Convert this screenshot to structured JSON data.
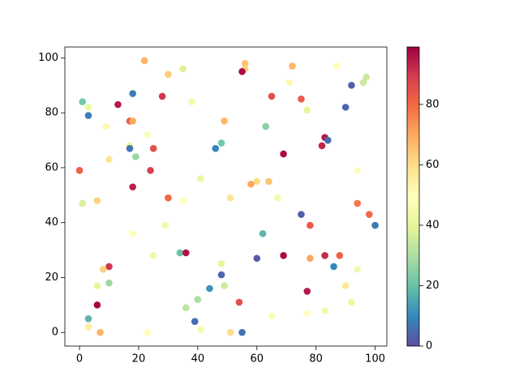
{
  "chart_data": {
    "type": "scatter",
    "x": [
      22,
      56,
      56,
      55,
      35,
      30,
      72,
      87,
      97,
      96,
      92,
      71,
      18,
      28,
      65,
      75,
      1,
      38,
      3,
      13,
      3,
      90,
      77,
      17,
      18,
      49,
      9,
      63,
      23,
      83,
      84,
      82,
      17,
      17,
      25,
      48,
      46,
      19,
      69,
      10,
      0,
      24,
      94,
      41,
      60,
      64,
      58,
      18,
      67,
      30,
      51,
      35,
      6,
      1,
      94,
      98,
      75,
      100,
      29,
      78,
      62,
      18,
      25,
      60,
      69,
      83,
      88,
      78,
      34,
      36,
      48,
      86,
      10,
      8,
      94,
      48,
      10,
      6,
      49,
      90,
      44,
      77,
      40,
      92,
      54,
      6,
      36,
      83,
      77,
      65,
      3,
      39,
      3,
      41,
      7,
      23,
      51,
      55
    ],
    "values": [
      99,
      98,
      96,
      95,
      96,
      94,
      97,
      97,
      93,
      91,
      90,
      91,
      87,
      86,
      86,
      85,
      84,
      84,
      82,
      83,
      79,
      82,
      81,
      77,
      77,
      77,
      75,
      75,
      72,
      71,
      70,
      68,
      68,
      67,
      67,
      69,
      67,
      64,
      65,
      63,
      59,
      59,
      59,
      56,
      55,
      55,
      54,
      53,
      49,
      49,
      49,
      48,
      48,
      47,
      47,
      43,
      43,
      39,
      39,
      39,
      36,
      36,
      28,
      27,
      28,
      28,
      28,
      27,
      29,
      29,
      25,
      24,
      24,
      23,
      23,
      21,
      18,
      17,
      17,
      17,
      16,
      15,
      12,
      11,
      11,
      10,
      9,
      8,
      7,
      6,
      5,
      4,
      2,
      1,
      0,
      0,
      0,
      0
    ],
    "c": [
      68,
      65,
      63,
      97,
      38,
      63,
      68,
      50,
      35,
      35,
      3,
      52,
      8,
      90,
      85,
      83,
      22,
      45,
      42,
      95,
      8,
      4,
      40,
      83,
      70,
      68,
      52,
      25,
      48,
      95,
      5,
      93,
      55,
      7,
      85,
      22,
      10,
      27,
      97,
      58,
      82,
      88,
      48,
      42,
      60,
      65,
      70,
      94,
      45,
      80,
      58,
      50,
      62,
      38,
      78,
      80,
      3,
      7,
      45,
      83,
      18,
      50,
      43,
      2,
      97,
      92,
      82,
      70,
      20,
      96,
      40,
      10,
      90,
      62,
      45,
      4,
      28,
      40,
      35,
      57,
      12,
      95,
      30,
      42,
      85,
      98,
      33,
      45,
      50,
      48,
      18,
      5,
      55,
      45,
      68,
      50,
      60,
      6
    ],
    "colormap": [
      "#5e4fa2",
      "#3288bd",
      "#66c2a5",
      "#abdda4",
      "#e6f598",
      "#ffffbf",
      "#fee08b",
      "#fdae61",
      "#f46d43",
      "#d53e4f",
      "#9e0142"
    ],
    "xlim": [
      -4.95,
      103.95
    ],
    "ylim": [
      -4.95,
      103.95
    ],
    "xticks": [
      0,
      20,
      40,
      60,
      80,
      100
    ],
    "yticks": [
      0,
      20,
      40,
      60,
      80,
      100
    ],
    "clim": [
      0,
      99
    ],
    "cticks": [
      0,
      20,
      40,
      60,
      80
    ]
  }
}
